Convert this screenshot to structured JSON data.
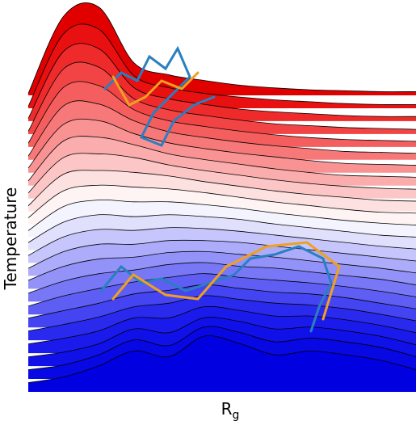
{
  "chart_data": {
    "type": "ridgeline",
    "xlabel": "R",
    "xlabel_subscript": "g",
    "ylabel": "Temperature",
    "series": [
      {
        "color": "#e00000",
        "values": [
          2,
          85,
          95,
          35,
          22,
          16,
          11,
          8,
          6,
          5,
          4,
          4
        ]
      },
      {
        "color": "#e81010",
        "values": [
          2,
          80,
          85,
          35,
          22,
          16,
          12,
          9,
          7,
          5,
          4,
          4
        ]
      },
      {
        "color": "#ef2a2a",
        "values": [
          3,
          75,
          78,
          36,
          24,
          18,
          13,
          10,
          8,
          6,
          5,
          5
        ]
      },
      {
        "color": "#f24444",
        "values": [
          3,
          70,
          72,
          38,
          26,
          20,
          15,
          11,
          9,
          7,
          6,
          5
        ]
      },
      {
        "color": "#f55e5e",
        "values": [
          4,
          64,
          66,
          40,
          28,
          22,
          17,
          13,
          10,
          8,
          7,
          6
        ]
      },
      {
        "color": "#f77878",
        "values": [
          4,
          58,
          60,
          42,
          30,
          24,
          19,
          15,
          12,
          9,
          8,
          7
        ]
      },
      {
        "color": "#f99292",
        "values": [
          5,
          52,
          56,
          42,
          32,
          26,
          21,
          17,
          13,
          10,
          9,
          8
        ]
      },
      {
        "color": "#fbacac",
        "values": [
          5,
          48,
          52,
          44,
          34,
          28,
          23,
          18,
          14,
          11,
          10,
          9
        ]
      },
      {
        "color": "#fcc6c6",
        "values": [
          6,
          44,
          48,
          44,
          36,
          30,
          25,
          20,
          16,
          13,
          11,
          10
        ]
      },
      {
        "color": "#fde0e0",
        "values": [
          6,
          40,
          44,
          42,
          38,
          32,
          27,
          22,
          18,
          15,
          12,
          11
        ]
      },
      {
        "color": "#fff4f4",
        "values": [
          7,
          36,
          42,
          40,
          38,
          34,
          29,
          24,
          20,
          16,
          13,
          12
        ]
      },
      {
        "color": "#f4f4ff",
        "values": [
          7,
          33,
          40,
          38,
          38,
          35,
          31,
          26,
          22,
          18,
          15,
          13
        ]
      },
      {
        "color": "#e0e0fd",
        "values": [
          8,
          30,
          38,
          36,
          38,
          36,
          33,
          28,
          24,
          20,
          16,
          14
        ]
      },
      {
        "color": "#c6c6fc",
        "values": [
          8,
          28,
          36,
          35,
          38,
          37,
          34,
          30,
          26,
          22,
          18,
          15
        ]
      },
      {
        "color": "#acacfb",
        "values": [
          8,
          26,
          34,
          34,
          38,
          38,
          36,
          32,
          28,
          24,
          20,
          16
        ]
      },
      {
        "color": "#9292f9",
        "values": [
          9,
          24,
          32,
          34,
          39,
          40,
          37,
          34,
          30,
          26,
          22,
          17
        ]
      },
      {
        "color": "#7878f7",
        "values": [
          9,
          22,
          30,
          34,
          40,
          42,
          38,
          36,
          32,
          28,
          24,
          18
        ]
      },
      {
        "color": "#5e5ef5",
        "values": [
          9,
          20,
          28,
          35,
          40,
          44,
          40,
          37,
          34,
          30,
          25,
          19
        ]
      },
      {
        "color": "#4444f2",
        "values": [
          10,
          18,
          26,
          36,
          40,
          46,
          42,
          38,
          36,
          32,
          26,
          20
        ]
      },
      {
        "color": "#2a2aef",
        "values": [
          10,
          17,
          25,
          36,
          40,
          48,
          44,
          40,
          38,
          34,
          28,
          21
        ]
      },
      {
        "color": "#1a1aec",
        "values": [
          10,
          16,
          24,
          38,
          38,
          50,
          46,
          40,
          40,
          36,
          30,
          22
        ]
      },
      {
        "color": "#1010e8",
        "values": [
          10,
          15,
          24,
          40,
          36,
          52,
          48,
          40,
          42,
          38,
          32,
          23
        ]
      },
      {
        "color": "#0808e4",
        "values": [
          10,
          15,
          26,
          42,
          36,
          56,
          50,
          40,
          44,
          40,
          34,
          24
        ]
      },
      {
        "color": "#0000e0",
        "values": [
          10,
          16,
          28,
          44,
          38,
          60,
          52,
          40,
          44,
          40,
          34,
          24
        ]
      }
    ]
  }
}
